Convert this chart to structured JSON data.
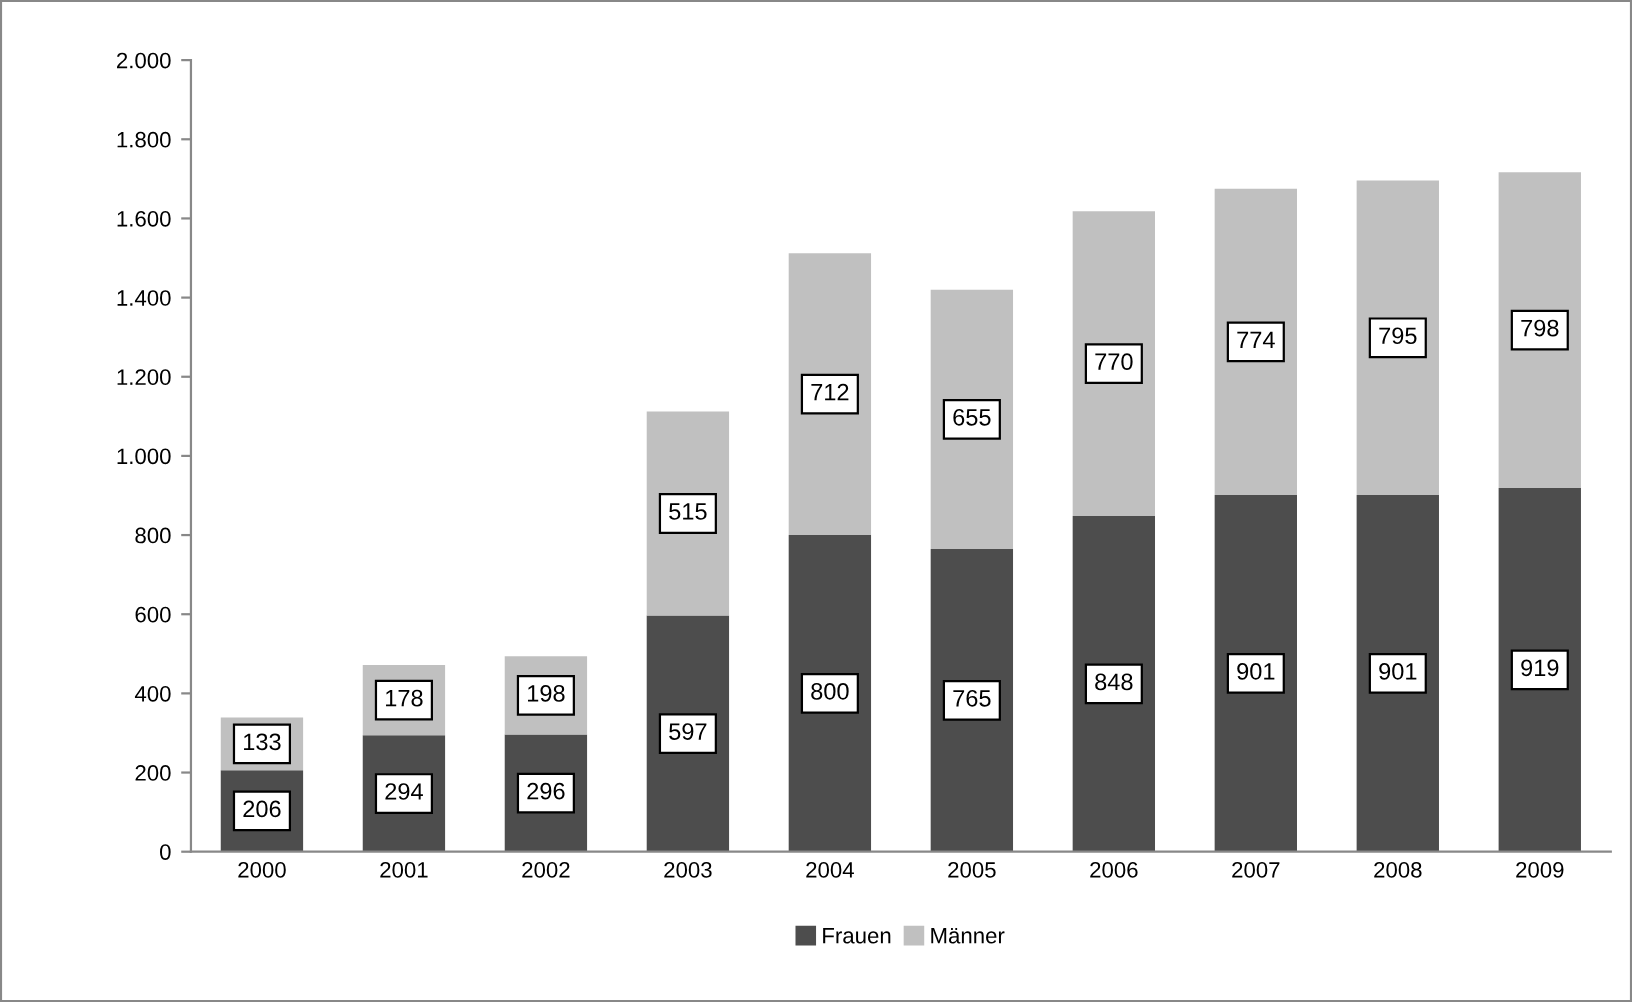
{
  "chart_data": {
    "type": "bar",
    "stacked": true,
    "categories": [
      "2000",
      "2001",
      "2002",
      "2003",
      "2004",
      "2005",
      "2006",
      "2007",
      "2008",
      "2009"
    ],
    "series": [
      {
        "name": "Frauen",
        "color": "#4d4d4d",
        "values": [
          206,
          294,
          296,
          597,
          800,
          765,
          848,
          901,
          901,
          919
        ]
      },
      {
        "name": "Männer",
        "color": "#c0c0c0",
        "values": [
          133,
          178,
          198,
          515,
          712,
          655,
          770,
          774,
          795,
          798
        ]
      }
    ],
    "ylim": [
      0,
      2000
    ],
    "yticks": [
      0,
      200,
      400,
      600,
      800,
      {
        "value": 1000,
        "label": "1.000"
      },
      {
        "value": 1200,
        "label": "1.200"
      },
      {
        "value": 1400,
        "label": "1.400"
      },
      {
        "value": 1600,
        "label": "1.600"
      },
      {
        "value": 1800,
        "label": "1.800"
      },
      {
        "value": 2000,
        "label": "2.000"
      }
    ],
    "data_labels": true,
    "legend": "bottom",
    "grid": false
  }
}
